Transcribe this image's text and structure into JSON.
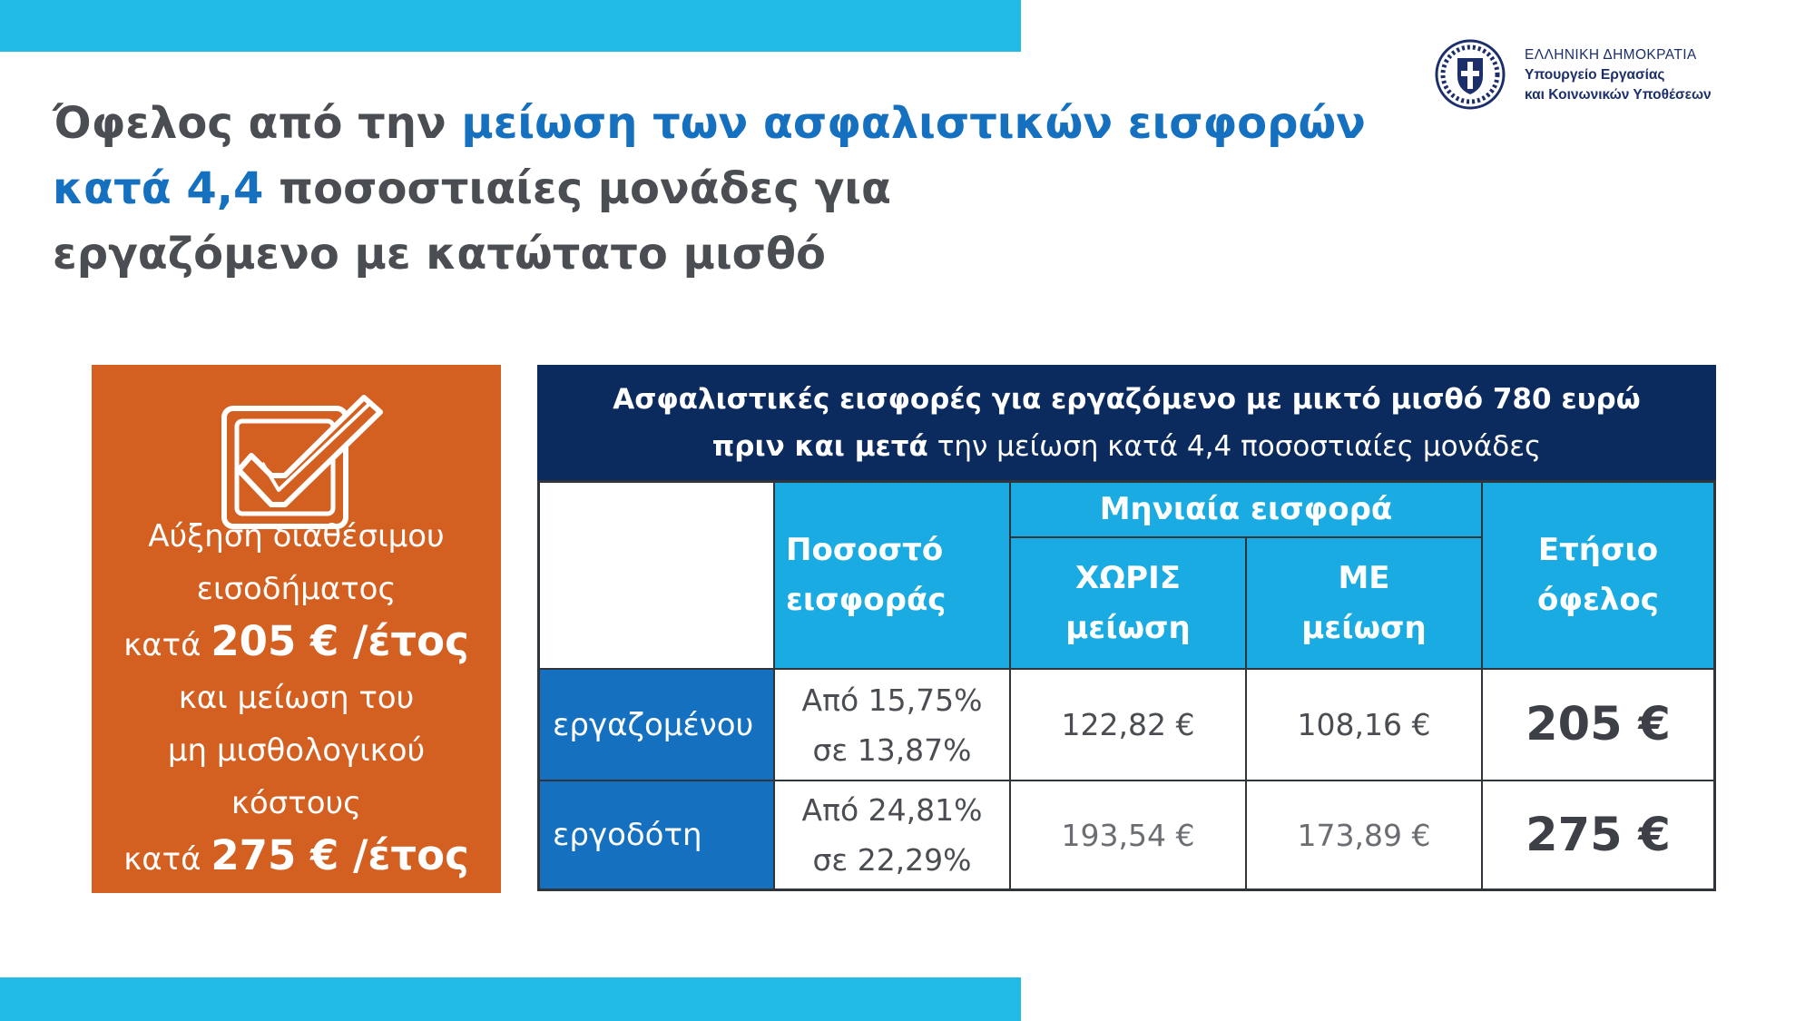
{
  "title": {
    "part1": "Όφελος από την ",
    "highlight1": "μείωση των ασφαλιστικών εισφορών",
    "highlight2": "κατά 4,4",
    "part2": " ποσοστιαίες μονάδες για",
    "line3": "εργαζόμενο με κατώτατο μισθό"
  },
  "ministry": {
    "line1": "ΕΛΛΗΝΙΚΗ ΔΗΜΟΚΡΑΤΙΑ",
    "line2": "Υπουργείο Εργασίας",
    "line3": "και Κοινωνικών Υποθέσεων"
  },
  "highlight_box": {
    "icon": "checkbox-icon",
    "line1": "Αύξηση διαθέσιμου",
    "line2": "εισοδήματος",
    "line3_prefix": "κατά ",
    "line3_amount": "205 € /έτος",
    "line4": "και μείωση του",
    "line5": "μη μισθολογικού",
    "line6": "κόστους",
    "line7_prefix": "κατά ",
    "line7_amount": "275 € /έτος"
  },
  "table": {
    "header_line1": "Ασφαλιστικές εισφορές για εργαζόμενο με μικτό μισθό 780 ευρώ",
    "header_line2_a": "πριν και ",
    "header_line2_b": "μετά",
    "header_line2_c": " την μείωση κατά 4,4 ποσοστιαίες μονάδες",
    "col_rate_l1": "Ποσοστό",
    "col_rate_l2": "εισφοράς",
    "col_monthly": "Μηνιαία εισφορά",
    "col_without_l1": "ΧΩΡΙΣ",
    "col_without_l2": "μείωση",
    "col_with_l1": "ΜΕ",
    "col_with_l2": "μείωση",
    "col_annual_l1": "Ετήσιο",
    "col_annual_l2": "όφελος",
    "rows": [
      {
        "label": "εργαζομένου",
        "rate_l1": "Από 15,75%",
        "rate_l2": "σε 13,87%",
        "without": "122,82 €",
        "with": "108,16 €",
        "benefit": "205 €"
      },
      {
        "label": "εργοδότη",
        "rate_l1": "Από 24,81%",
        "rate_l2": "σε 22,29%",
        "without": "193,54 €",
        "with": "173,89 €",
        "benefit": "275 €"
      }
    ]
  },
  "colors": {
    "accent_blue": "#1570c0",
    "cyan": "#1aabe2",
    "navy": "#0b2a5e",
    "orange": "#d35f20",
    "text_gray": "#4a4d52"
  }
}
